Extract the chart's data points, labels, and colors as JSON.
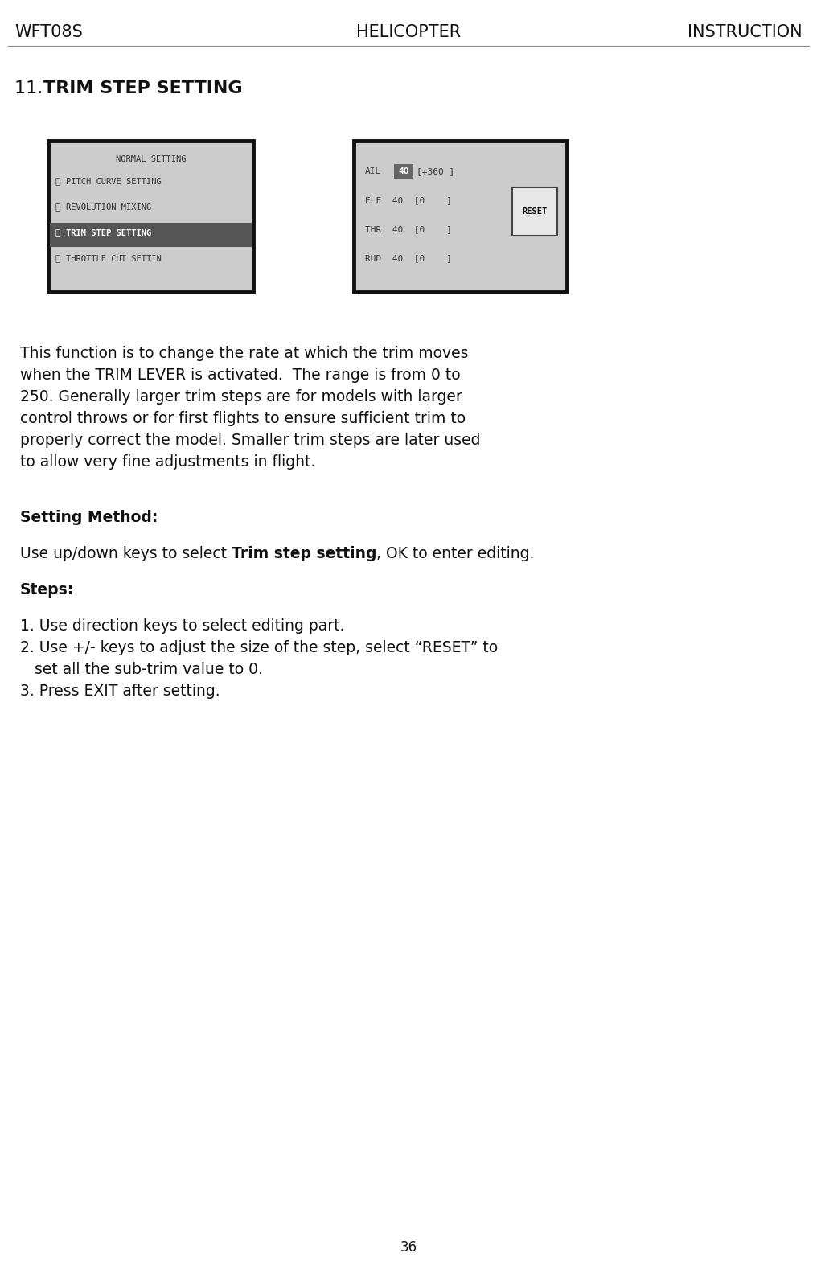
{
  "bg_color": "#ffffff",
  "text_color": "#000000",
  "header_left": "WFT08S",
  "header_center": "HELICOPTER",
  "header_right": "INSTRUCTION",
  "section_title": "11. TRIM STEP SETTING",
  "section_title_plain": "11. ",
  "section_title_bold": "TRIM STEP SETTING",
  "body_lines": [
    "This function is to change the rate at which the trim moves",
    "when the TRIM LEVER is activated.  The range is from 0 to",
    "250. Generally larger trim steps are for models with larger",
    "control throws or for first flights to ensure sufficient trim to",
    "properly correct the model. Smaller trim steps are later used",
    "to allow very fine adjustments in flight."
  ],
  "setting_method_label": "Setting Method:",
  "setting_method_plain": "Use up/down keys to select ",
  "setting_method_bold": "Trim step setting",
  "setting_method_end": ", OK to enter editing.",
  "steps_label": "Steps:",
  "step1": "1. Use direction keys to select editing part.",
  "step2a": "2. Use +/- keys to adjust the size of the step, select “RESET” to",
  "step2b": "   set all the sub-trim value to 0.",
  "step3": "3. Press EXIT after setting.",
  "footer_page": "36",
  "screen1_title": "NORMAL SETTING",
  "screen1_items": [
    [
      "ⓙ",
      "PITCH CURVE SETTING"
    ],
    [
      "ⓡ",
      "REVOLUTION MIXING"
    ],
    [
      "ⓜ",
      "TRIM STEP SETTING"
    ],
    [
      "ⓡ",
      "THROTTLE CUT SETTIN"
    ]
  ],
  "screen1_highlighted": 2,
  "screen2_items": [
    [
      "AIL",
      "40",
      "[+360 ]"
    ],
    [
      "ELE",
      "40",
      "[0    ]"
    ],
    [
      "THR",
      "40",
      "[0    ]"
    ],
    [
      "RUD",
      "40",
      "[0    ]"
    ]
  ],
  "gray_bg": "#cccccc",
  "screen_border": "#111111",
  "highlight_bg": "#555555",
  "highlight_fg": "#ffffff",
  "ail_hl_bg": "#666666",
  "ail_hl_fg": "#ffffff",
  "reset_bg": "#e8e8e8",
  "reset_border": "#444444"
}
